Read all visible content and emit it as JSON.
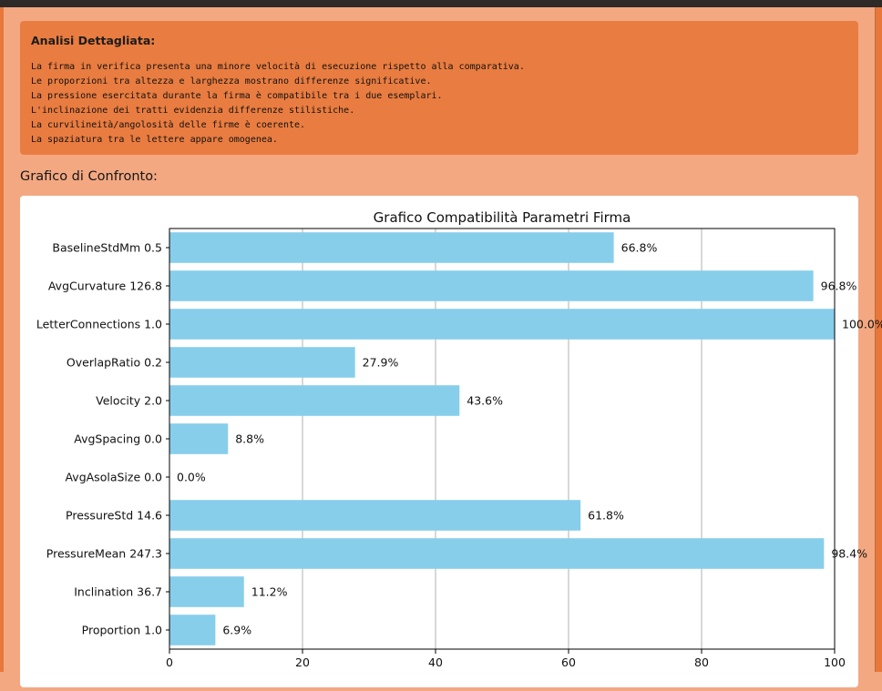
{
  "analysis": {
    "title": "Analisi Dettagliata:",
    "lines": [
      "La firma in verifica presenta una minore velocità di esecuzione rispetto alla comparativa.",
      "Le proporzioni tra altezza e larghezza mostrano differenze significative.",
      "La pressione esercitata durante la firma è compatibile tra i due esemplari.",
      "L'inclinazione dei tratti evidenzia differenze stilistiche.",
      "La curvilineità/angolosità delle firme è coerente.",
      "La spaziatura tra le lettere appare omogenea."
    ]
  },
  "section_title": "Grafico di Confronto:",
  "chart_data": {
    "type": "bar",
    "orientation": "horizontal",
    "title": "Grafico Compatibilità Parametri Firma",
    "xlabel": "",
    "ylabel": "",
    "xlim": [
      0,
      100
    ],
    "x_ticks": [
      "0",
      "20",
      "40",
      "60",
      "80",
      "100"
    ],
    "grid": "vertical",
    "bar_color": "#87ceeb",
    "categories": [
      "BaselineStdMm 0.5",
      "AvgCurvature 126.8",
      "LetterConnections 1.0",
      "OverlapRatio 0.2",
      "Velocity 2.0",
      "AvgSpacing 0.0",
      "AvgAsolaSize 0.0",
      "PressureStd 14.6",
      "PressureMean 247.3",
      "Inclination 36.7",
      "Proportion 1.0"
    ],
    "values": [
      66.8,
      96.8,
      100,
      27.9,
      43.6,
      8.8,
      0.0,
      61.8,
      98.4,
      11.2,
      6.9
    ],
    "value_labels": [
      "66.8%",
      "96.8%",
      "100.0%",
      "27.9%",
      "43.6%",
      "8.8%",
      "0.0%",
      "61.8%",
      "98.4%",
      "11.2%",
      "6.9%"
    ]
  }
}
